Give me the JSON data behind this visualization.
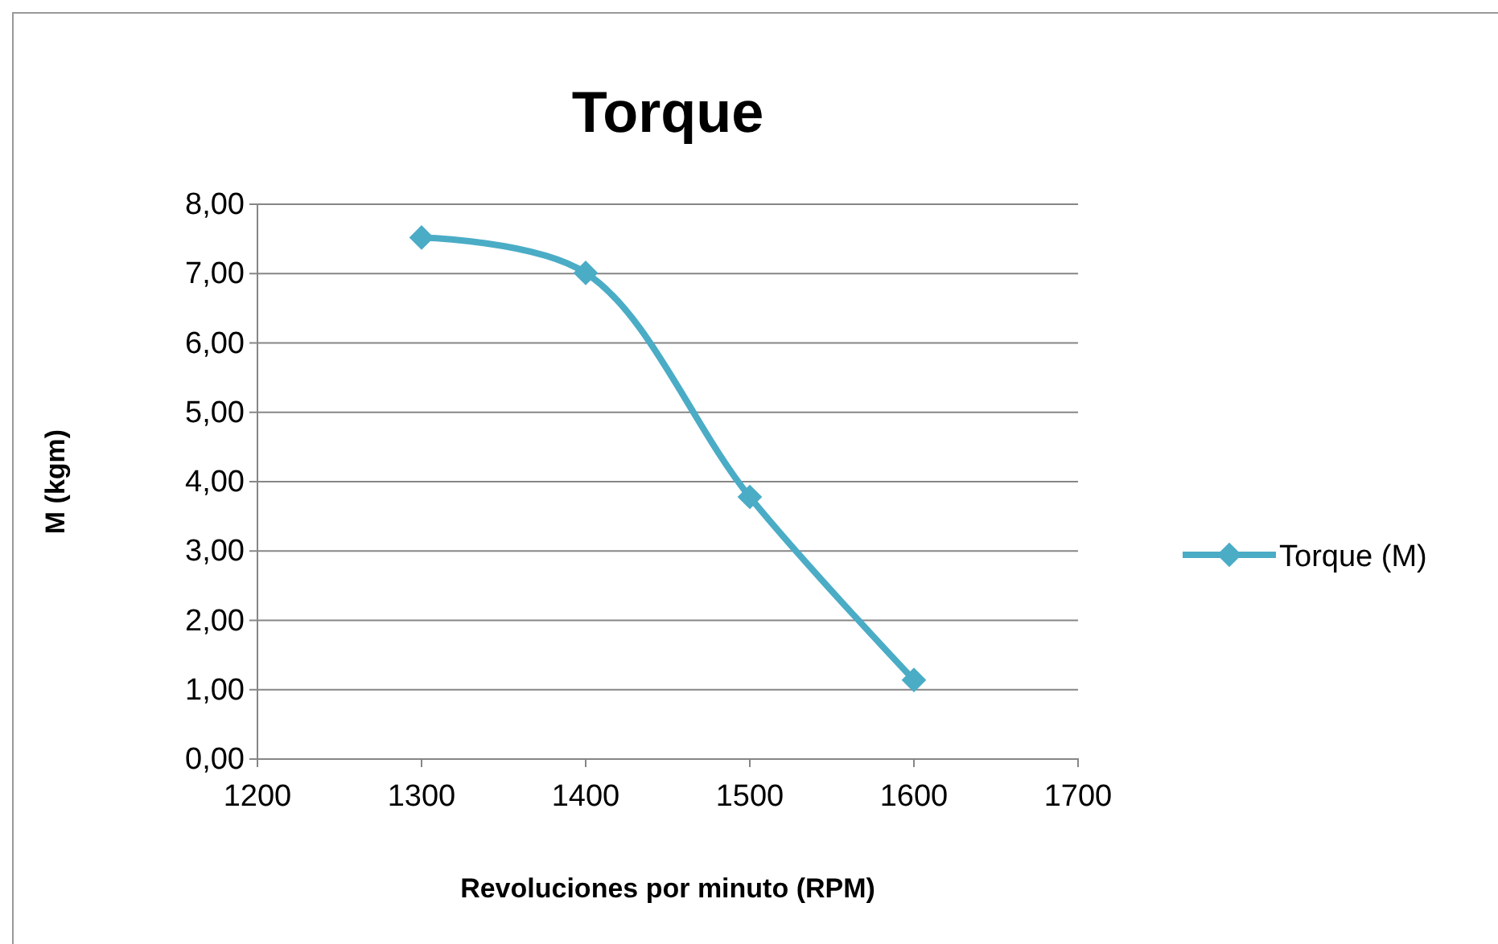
{
  "chart_data": {
    "type": "line",
    "title": "Torque",
    "xlabel": "Revoluciones por minuto (RPM)",
    "ylabel": "M (kgm)",
    "x": [
      1300,
      1400,
      1500,
      1600
    ],
    "series": [
      {
        "name": "Torque (M)",
        "color": "#4bacc6",
        "values": [
          7.52,
          7.01,
          3.78,
          1.14
        ]
      }
    ],
    "xlim": [
      1200,
      1700
    ],
    "xticks": [
      1200,
      1300,
      1400,
      1500,
      1600,
      1700
    ],
    "ylim": [
      0,
      8
    ],
    "yticks": [
      {
        "value": 0,
        "label": "0,00"
      },
      {
        "value": 1,
        "label": "1,00"
      },
      {
        "value": 2,
        "label": "2,00"
      },
      {
        "value": 3,
        "label": "3,00"
      },
      {
        "value": 4,
        "label": "4,00"
      },
      {
        "value": 5,
        "label": "5,00"
      },
      {
        "value": 6,
        "label": "6,00"
      },
      {
        "value": 7,
        "label": "7,00"
      },
      {
        "value": 8,
        "label": "8,00"
      }
    ],
    "grid": "y",
    "legend": "right",
    "marker": "diamond",
    "line_style": "solid"
  }
}
